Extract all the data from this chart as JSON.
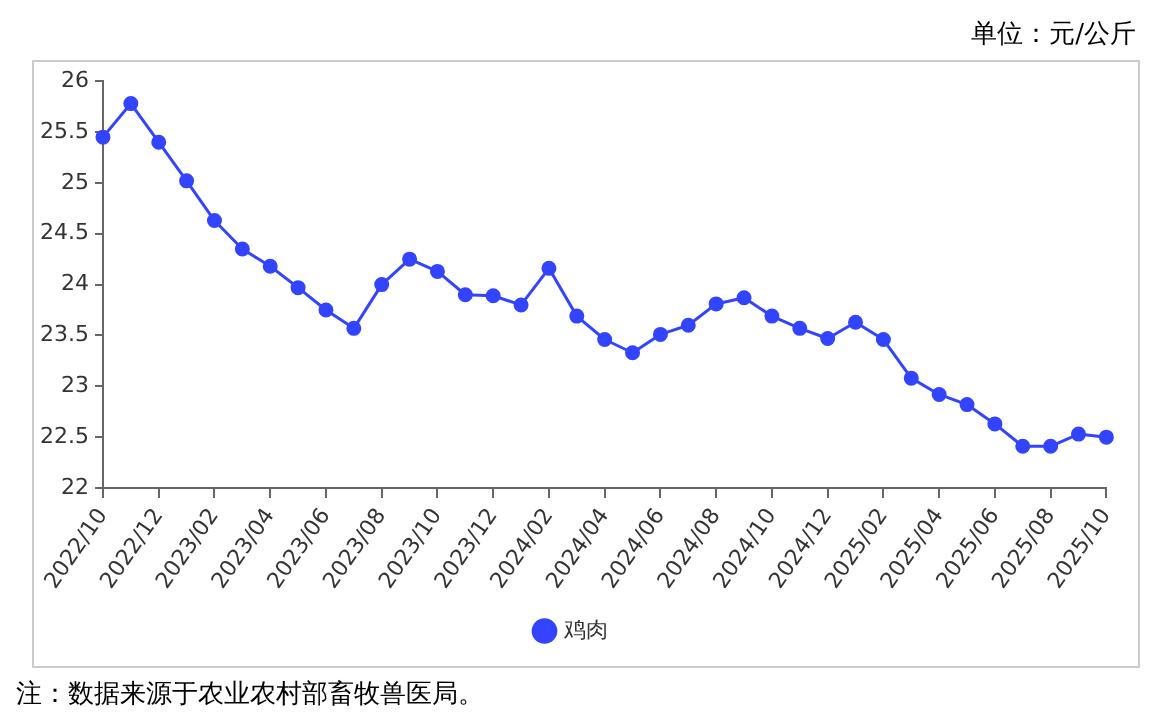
{
  "chart_data": {
    "type": "line",
    "categories": [
      "2022/10",
      null,
      "2022/12",
      null,
      "2023/02",
      null,
      "2023/04",
      null,
      "2023/06",
      null,
      "2023/08",
      null,
      "2023/10",
      null,
      "2023/12",
      null,
      "2024/02",
      null,
      "2024/04",
      null,
      "2024/06",
      null,
      "2024/08",
      null,
      "2024/10",
      null,
      "2024/12",
      null,
      "2025/02",
      null,
      "2025/04",
      null,
      "2025/06",
      null,
      "2025/08",
      null,
      "2025/10"
    ],
    "series": [
      {
        "name": "鸡肉",
        "color": "#3344ff",
        "values": [
          25.45,
          25.78,
          25.4,
          25.02,
          24.63,
          24.35,
          24.18,
          23.97,
          23.75,
          23.57,
          24.0,
          24.25,
          24.13,
          23.9,
          23.89,
          23.8,
          24.16,
          23.69,
          23.46,
          23.33,
          23.51,
          23.6,
          23.81,
          23.87,
          23.69,
          23.57,
          23.47,
          23.63,
          23.46,
          23.08,
          22.92,
          22.82,
          22.63,
          22.41,
          22.41,
          22.53,
          22.5
        ]
      }
    ],
    "ylim": [
      22,
      26
    ],
    "yticks": [
      22,
      22.5,
      23,
      23.5,
      24,
      24.5,
      25,
      25.5,
      26
    ],
    "grid": false,
    "legend": "bottom",
    "marker": "circle",
    "line_style": "solid",
    "annotations": [
      "单位：元/公斤",
      "注：数据来源于农业农村部畜牧兽医局。"
    ]
  }
}
